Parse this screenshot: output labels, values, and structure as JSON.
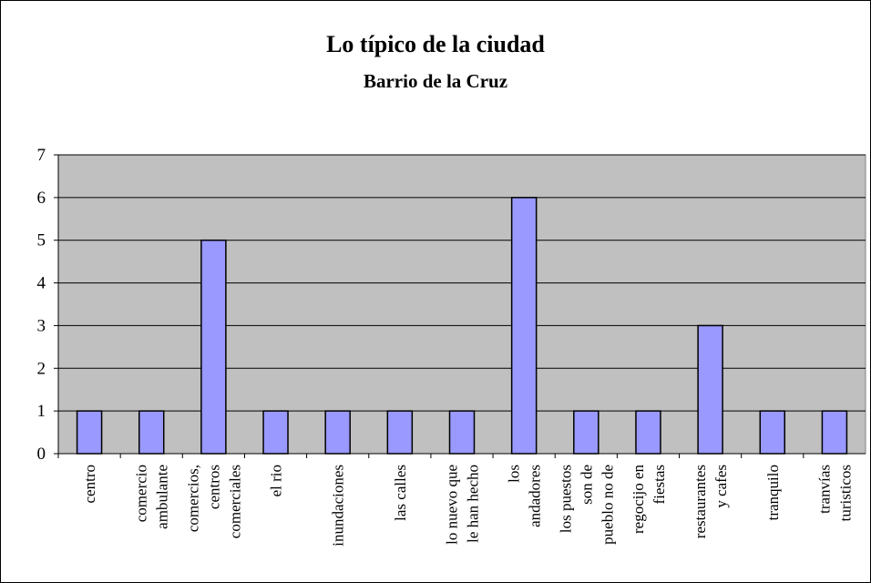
{
  "chart_data": {
    "type": "bar",
    "title": "Lo típico de la ciudad",
    "subtitle": "Barrio de la Cruz",
    "categories": [
      "centro",
      "comercio ambulante",
      "comercios, centros comerciales",
      "el rio",
      "inundaciones",
      "las calles",
      "lo nuevo que le han hecho",
      "los andadores",
      "los puestos son de pueblo no de",
      "regocijo en fiestas",
      "restaurantes y cafes",
      "tranquilo",
      "tranvías turisticos"
    ],
    "values": [
      1,
      1,
      5,
      1,
      1,
      1,
      1,
      6,
      1,
      1,
      3,
      1,
      1
    ],
    "color": "#9999ff",
    "plot_background": "#c0c0c0",
    "ylim": [
      0,
      7
    ],
    "yticks": [
      0,
      1,
      2,
      3,
      4,
      5,
      6,
      7
    ],
    "grid": true
  }
}
